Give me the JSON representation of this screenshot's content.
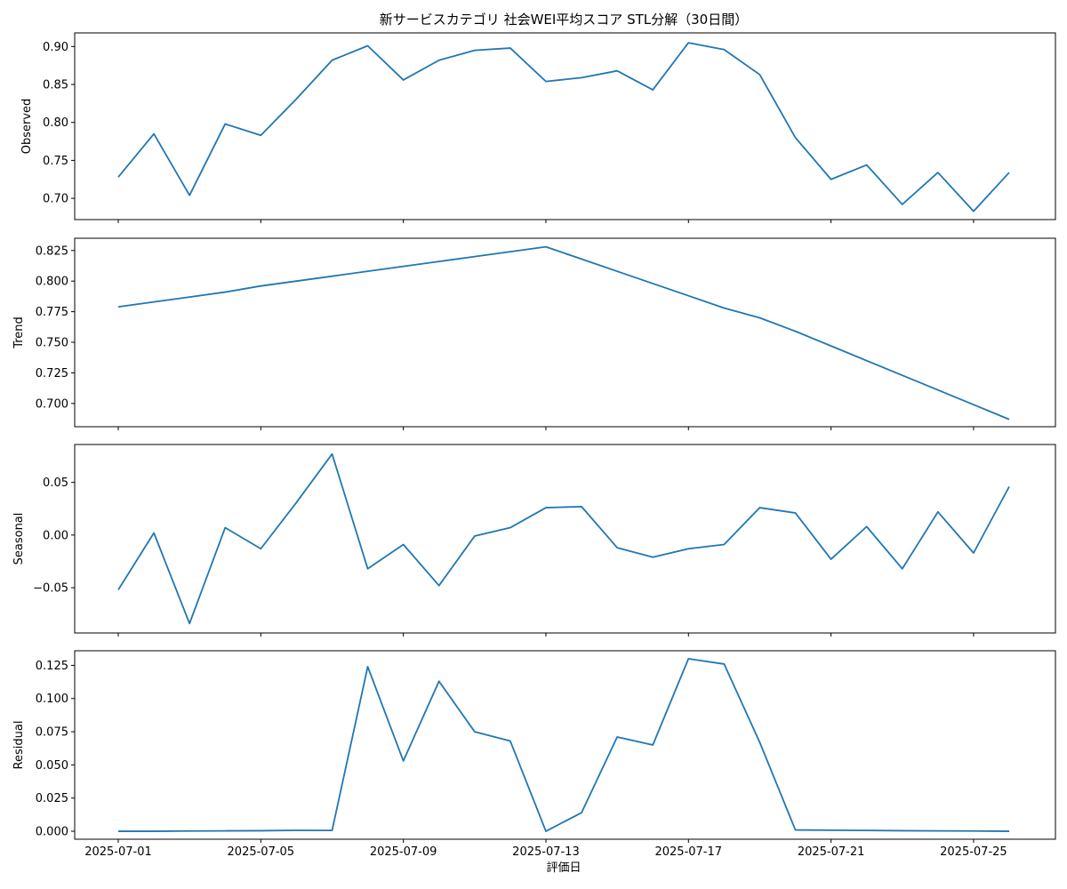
{
  "title": "新サービスカテゴリ 社会WEI平均スコア STL分解（30日間）",
  "xlabel": "評価日",
  "x_tick_labels": [
    "2025-07-01",
    "2025-07-05",
    "2025-07-09",
    "2025-07-13",
    "2025-07-17",
    "2025-07-21",
    "2025-07-25"
  ],
  "colors": {
    "line": "#1f77b4",
    "axes": "#000000",
    "background": "#ffffff"
  },
  "chart_data": {
    "type": "line",
    "title": "新サービスカテゴリ 社会WEI平均スコア STL分解（30日間）",
    "xlabel": "評価日",
    "x": [
      "2025-07-01",
      "2025-07-02",
      "2025-07-03",
      "2025-07-04",
      "2025-07-05",
      "2025-07-06",
      "2025-07-07",
      "2025-07-08",
      "2025-07-09",
      "2025-07-10",
      "2025-07-11",
      "2025-07-12",
      "2025-07-13",
      "2025-07-14",
      "2025-07-15",
      "2025-07-16",
      "2025-07-17",
      "2025-07-18",
      "2025-07-19",
      "2025-07-20",
      "2025-07-21",
      "2025-07-22",
      "2025-07-23",
      "2025-07-24",
      "2025-07-25",
      "2025-07-26"
    ],
    "grid": false,
    "panels": [
      {
        "ylabel": "Observed",
        "ylim": [
          0.672,
          0.918
        ],
        "yticks": [
          0.7,
          0.75,
          0.8,
          0.85,
          0.9
        ],
        "ytick_labels": [
          "0.70",
          "0.75",
          "0.80",
          "0.85",
          "0.90"
        ],
        "values": [
          0.728,
          0.785,
          0.704,
          0.798,
          0.783,
          0.831,
          0.882,
          0.901,
          0.856,
          0.882,
          0.895,
          0.898,
          0.854,
          0.859,
          0.868,
          0.843,
          0.905,
          0.896,
          0.863,
          0.78,
          0.725,
          0.744,
          0.692,
          0.734,
          0.683,
          0.734
        ]
      },
      {
        "ylabel": "Trend",
        "ylim": [
          0.681,
          0.835
        ],
        "yticks": [
          0.7,
          0.725,
          0.75,
          0.775,
          0.8,
          0.825
        ],
        "ytick_labels": [
          "0.700",
          "0.725",
          "0.750",
          "0.775",
          "0.800",
          "0.825"
        ],
        "values": [
          0.779,
          0.783,
          0.787,
          0.791,
          0.796,
          0.8,
          0.804,
          0.808,
          0.812,
          0.816,
          0.82,
          0.824,
          0.828,
          0.818,
          0.808,
          0.798,
          0.788,
          0.778,
          0.77,
          0.759,
          0.747,
          0.735,
          0.723,
          0.711,
          0.699,
          0.687
        ]
      },
      {
        "ylabel": "Seasonal",
        "ylim": [
          -0.093,
          0.086
        ],
        "yticks": [
          -0.05,
          0.0,
          0.05
        ],
        "ytick_labels": [
          "−0.05",
          "0.00",
          "0.05"
        ],
        "values": [
          -0.052,
          0.002,
          -0.084,
          0.007,
          -0.013,
          0.031,
          0.077,
          -0.032,
          -0.009,
          -0.048,
          -0.001,
          0.007,
          0.026,
          0.027,
          -0.012,
          -0.021,
          -0.013,
          -0.009,
          0.026,
          0.021,
          -0.023,
          0.008,
          -0.032,
          0.022,
          -0.017,
          0.046
        ]
      },
      {
        "ylabel": "Residual",
        "ylim": [
          -0.006,
          0.136
        ],
        "yticks": [
          0.0,
          0.025,
          0.05,
          0.075,
          0.1,
          0.125
        ],
        "ytick_labels": [
          "0.000",
          "0.025",
          "0.050",
          "0.075",
          "0.100",
          "0.125"
        ],
        "values": [
          0.0,
          0.0,
          0.0002,
          0.0003,
          0.0004,
          0.0007,
          0.0006,
          0.124,
          0.053,
          0.113,
          0.075,
          0.068,
          0.0,
          0.014,
          0.071,
          0.065,
          0.13,
          0.126,
          0.067,
          0.001,
          0.0008,
          0.0006,
          0.0004,
          0.0003,
          0.0002,
          0.0
        ]
      }
    ]
  }
}
